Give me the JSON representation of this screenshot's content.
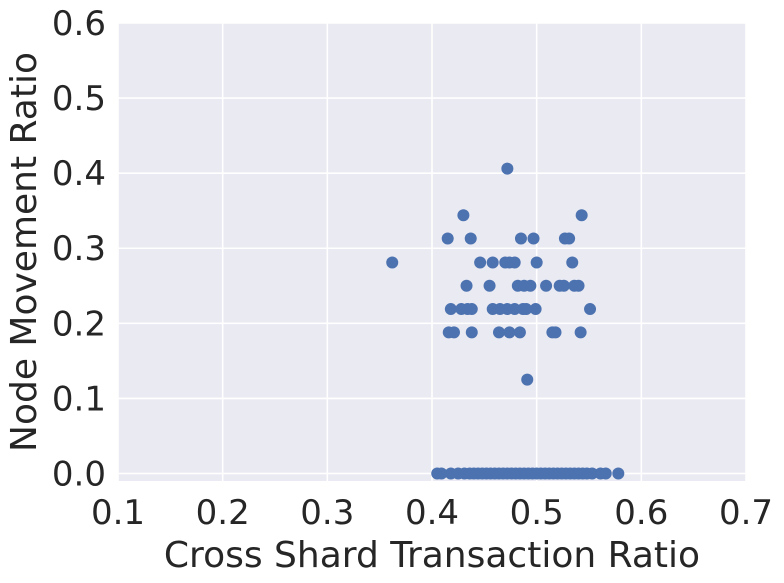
{
  "chart_data": {
    "type": "scatter",
    "title": "",
    "xlabel": "Cross Shard Transaction Ratio",
    "ylabel": "Node Movement Ratio",
    "xlim": [
      0.1,
      0.7
    ],
    "ylim": [
      -0.01,
      0.6
    ],
    "xticks": [
      "0.1",
      "0.2",
      "0.3",
      "0.4",
      "0.5",
      "0.6",
      "0.7"
    ],
    "yticks": [
      "0.0",
      "0.1",
      "0.2",
      "0.3",
      "0.4",
      "0.5",
      "0.6"
    ],
    "grid": true,
    "background": "#eaeaf2",
    "marker_color": "#4c72b0",
    "series": [
      {
        "points": [
          [
            0.362,
            0.281
          ],
          [
            0.472,
            0.406
          ],
          [
            0.43,
            0.344
          ],
          [
            0.543,
            0.344
          ],
          [
            0.415,
            0.313
          ],
          [
            0.437,
            0.313
          ],
          [
            0.485,
            0.313
          ],
          [
            0.497,
            0.313
          ],
          [
            0.527,
            0.313
          ],
          [
            0.531,
            0.313
          ],
          [
            0.446,
            0.281
          ],
          [
            0.458,
            0.281
          ],
          [
            0.47,
            0.281
          ],
          [
            0.474,
            0.281
          ],
          [
            0.479,
            0.281
          ],
          [
            0.5,
            0.281
          ],
          [
            0.534,
            0.281
          ],
          [
            0.433,
            0.25
          ],
          [
            0.455,
            0.25
          ],
          [
            0.482,
            0.25
          ],
          [
            0.488,
            0.25
          ],
          [
            0.494,
            0.25
          ],
          [
            0.509,
            0.25
          ],
          [
            0.522,
            0.25
          ],
          [
            0.526,
            0.25
          ],
          [
            0.536,
            0.25
          ],
          [
            0.54,
            0.25
          ],
          [
            0.418,
            0.219
          ],
          [
            0.428,
            0.219
          ],
          [
            0.434,
            0.219
          ],
          [
            0.438,
            0.219
          ],
          [
            0.458,
            0.219
          ],
          [
            0.465,
            0.219
          ],
          [
            0.472,
            0.219
          ],
          [
            0.479,
            0.219
          ],
          [
            0.487,
            0.219
          ],
          [
            0.49,
            0.219
          ],
          [
            0.499,
            0.219
          ],
          [
            0.551,
            0.219
          ],
          [
            0.416,
            0.188
          ],
          [
            0.421,
            0.188
          ],
          [
            0.438,
            0.188
          ],
          [
            0.464,
            0.188
          ],
          [
            0.474,
            0.188
          ],
          [
            0.484,
            0.188
          ],
          [
            0.515,
            0.188
          ],
          [
            0.518,
            0.188
          ],
          [
            0.542,
            0.188
          ],
          [
            0.491,
            0.125
          ],
          [
            0.405,
            0.0
          ],
          [
            0.409,
            0.0
          ],
          [
            0.418,
            0.0
          ],
          [
            0.425,
            0.0
          ],
          [
            0.431,
            0.0
          ],
          [
            0.436,
            0.0
          ],
          [
            0.44,
            0.0
          ],
          [
            0.444,
            0.0
          ],
          [
            0.448,
            0.0
          ],
          [
            0.452,
            0.0
          ],
          [
            0.456,
            0.0
          ],
          [
            0.46,
            0.0
          ],
          [
            0.464,
            0.0
          ],
          [
            0.468,
            0.0
          ],
          [
            0.472,
            0.0
          ],
          [
            0.476,
            0.0
          ],
          [
            0.48,
            0.0
          ],
          [
            0.484,
            0.0
          ],
          [
            0.488,
            0.0
          ],
          [
            0.492,
            0.0
          ],
          [
            0.496,
            0.0
          ],
          [
            0.5,
            0.0
          ],
          [
            0.504,
            0.0
          ],
          [
            0.508,
            0.0
          ],
          [
            0.512,
            0.0
          ],
          [
            0.516,
            0.0
          ],
          [
            0.52,
            0.0
          ],
          [
            0.524,
            0.0
          ],
          [
            0.528,
            0.0
          ],
          [
            0.532,
            0.0
          ],
          [
            0.536,
            0.0
          ],
          [
            0.54,
            0.0
          ],
          [
            0.544,
            0.0
          ],
          [
            0.548,
            0.0
          ],
          [
            0.553,
            0.0
          ],
          [
            0.561,
            0.0
          ],
          [
            0.566,
            0.0
          ],
          [
            0.578,
            0.0
          ]
        ]
      }
    ]
  }
}
